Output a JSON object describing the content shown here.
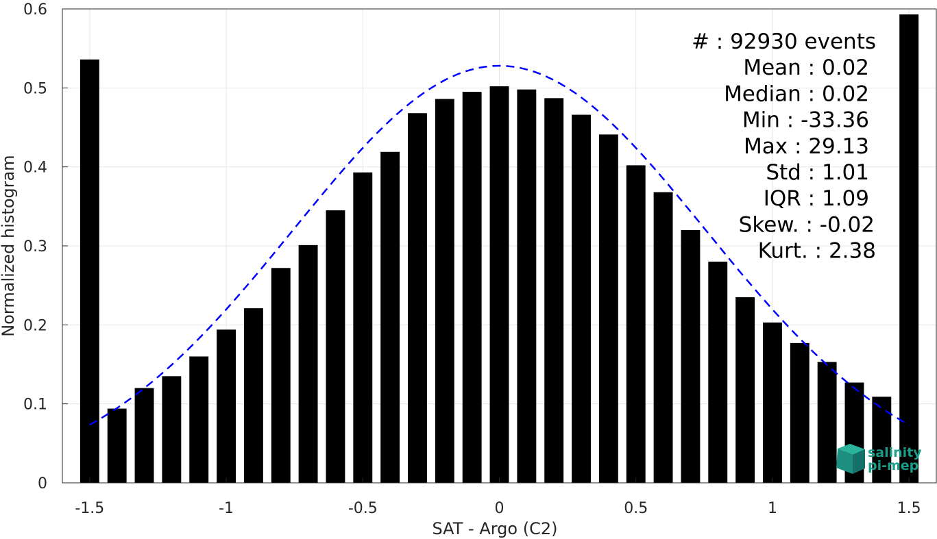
{
  "chart_data": {
    "type": "bar",
    "xlabel": "SAT - Argo (C2)",
    "ylabel": "Normalized histogram",
    "xlim": [
      -1.6,
      1.6
    ],
    "ylim": [
      0,
      0.6
    ],
    "grid": true,
    "xticks": [
      -1.5,
      -1,
      -0.5,
      0,
      0.5,
      1,
      1.5
    ],
    "xtick_labels": [
      "-1.5",
      "-1",
      "-0.5",
      "0",
      "0.5",
      "1",
      "1.5"
    ],
    "yticks": [
      0,
      0.1,
      0.2,
      0.3,
      0.4,
      0.5,
      0.6
    ],
    "ytick_labels": [
      "0",
      "0.1",
      "0.2",
      "0.3",
      "0.4",
      "0.5",
      "0.6"
    ],
    "bar_color": "#000000",
    "bins": [
      -1.5,
      -1.4,
      -1.3,
      -1.2,
      -1.1,
      -1.0,
      -0.9,
      -0.8,
      -0.7,
      -0.6,
      -0.5,
      -0.4,
      -0.3,
      -0.2,
      -0.1,
      0.0,
      0.1,
      0.2,
      0.3,
      0.4,
      0.5,
      0.6,
      0.7,
      0.8,
      0.9,
      1.0,
      1.1,
      1.2,
      1.3,
      1.4,
      1.5
    ],
    "values": [
      0.536,
      0.094,
      0.12,
      0.135,
      0.16,
      0.194,
      0.221,
      0.272,
      0.301,
      0.345,
      0.393,
      0.419,
      0.468,
      0.486,
      0.495,
      0.502,
      0.498,
      0.487,
      0.466,
      0.441,
      0.402,
      0.368,
      0.32,
      0.28,
      0.235,
      0.203,
      0.177,
      0.153,
      0.127,
      0.109,
      0.593
    ],
    "fit": {
      "style": "dashed",
      "color": "#0000ff",
      "mean": 0.0,
      "std": 0.755,
      "peak": 0.528,
      "x_range": [
        -1.5,
        1.5
      ]
    },
    "stats": [
      "#  : 92930 events",
      "Mean : 0.02",
      "Median : 0.02",
      "Min : -33.36",
      "Max : 29.13",
      "Std : 1.01",
      "IQR : 1.09",
      "Skew. : -0.02",
      "Kurt. : 2.38"
    ]
  },
  "logo": {
    "line1": "salinity",
    "line2": "pi-mep",
    "color": "#1a9e8a"
  }
}
